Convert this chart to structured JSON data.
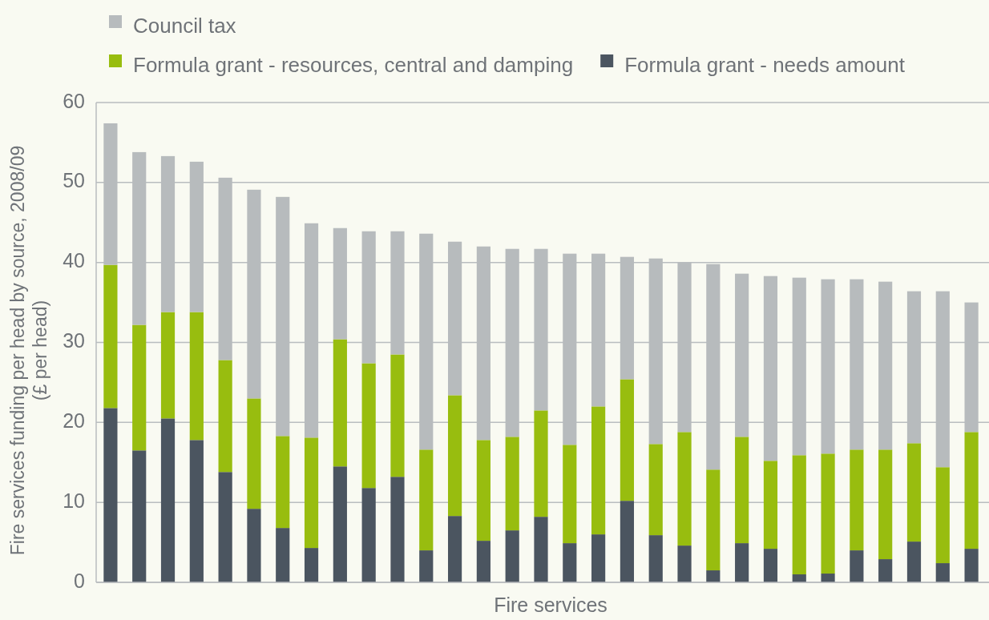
{
  "chart_data": {
    "type": "bar",
    "stacked": true,
    "xlabel": "Fire services",
    "ylabel": "Fire services funding per head by source, 2008/09\n(£ per head)",
    "categories": [
      null,
      null,
      null,
      null,
      null,
      null,
      null,
      null,
      null,
      null,
      null,
      null,
      null,
      null,
      null,
      null,
      null,
      null,
      null,
      null,
      null,
      null,
      null,
      null,
      null,
      null,
      null,
      null,
      null,
      null,
      null
    ],
    "series": [
      {
        "name": "Formula grant - needs amount",
        "color": "#4b5560",
        "values": [
          21.8,
          16.5,
          20.5,
          17.8,
          13.8,
          9.2,
          6.8,
          4.3,
          14.5,
          11.8,
          13.2,
          4.0,
          8.3,
          5.2,
          6.5,
          8.2,
          4.9,
          6.0,
          10.2,
          5.9,
          4.6,
          1.5,
          4.9,
          4.2,
          1.0,
          1.1,
          4.0,
          2.9,
          5.1,
          2.4,
          4.2
        ]
      },
      {
        "name": "Formula grant - resources, central and damping",
        "color": "#98bd0f",
        "values": [
          17.9,
          15.7,
          13.3,
          16.0,
          14.0,
          13.8,
          11.5,
          13.8,
          15.9,
          15.6,
          15.3,
          12.6,
          15.1,
          12.6,
          11.7,
          13.3,
          12.3,
          16.0,
          15.2,
          11.4,
          14.2,
          12.6,
          13.3,
          11.0,
          14.9,
          15.0,
          12.6,
          13.7,
          12.3,
          12.0,
          14.6
        ]
      },
      {
        "name": "Council tax",
        "color": "#b7bbbd",
        "values": [
          17.7,
          21.6,
          19.5,
          18.8,
          22.8,
          26.1,
          29.9,
          26.8,
          13.9,
          16.5,
          15.4,
          27.0,
          19.2,
          24.2,
          23.5,
          20.2,
          23.9,
          19.1,
          15.3,
          23.2,
          21.2,
          25.7,
          20.4,
          23.1,
          22.2,
          21.8,
          21.3,
          21.0,
          19.0,
          22.0,
          16.2
        ]
      }
    ],
    "ylim": [
      0,
      60
    ],
    "yticks": [
      0,
      10,
      20,
      30,
      40,
      50,
      60
    ],
    "grid": "y",
    "legend": "top"
  }
}
